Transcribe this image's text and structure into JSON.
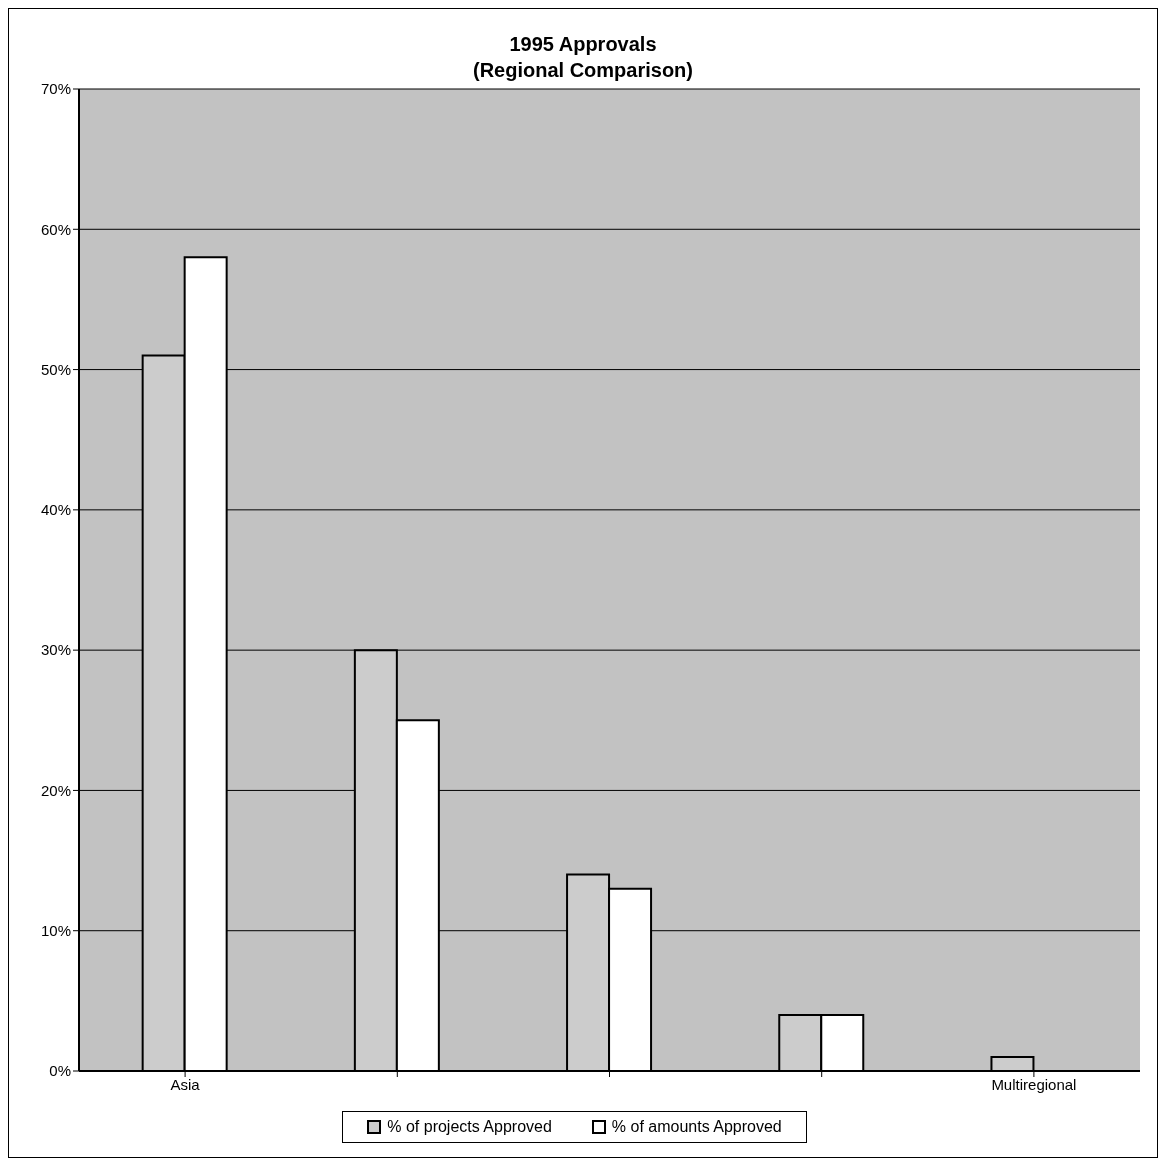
{
  "chart_data": {
    "type": "bar",
    "title": "1995 Approvals\n(Regional Comparison)",
    "categories": [
      "Asia",
      null,
      null,
      null,
      "Multiregional"
    ],
    "series": [
      {
        "name": "% of projects Approved",
        "color": "#cccccc",
        "values": [
          51,
          30,
          14,
          4,
          1
        ]
      },
      {
        "name": "% of amounts Approved",
        "color": "#ffffff",
        "values": [
          58,
          25,
          13,
          4,
          0
        ]
      }
    ],
    "ylim": [
      0,
      70
    ],
    "yticks": [
      {
        "value": 0,
        "label": "0%"
      },
      {
        "value": 10,
        "label": "10%"
      },
      {
        "value": 20,
        "label": "20%"
      },
      {
        "value": 30,
        "label": "30%"
      },
      {
        "value": 40,
        "label": "40%"
      },
      {
        "value": 50,
        "label": "50%"
      },
      {
        "value": 60,
        "label": "60%"
      },
      {
        "value": 70,
        "label": "70%"
      }
    ],
    "grid": "y",
    "legend": "bottom"
  }
}
